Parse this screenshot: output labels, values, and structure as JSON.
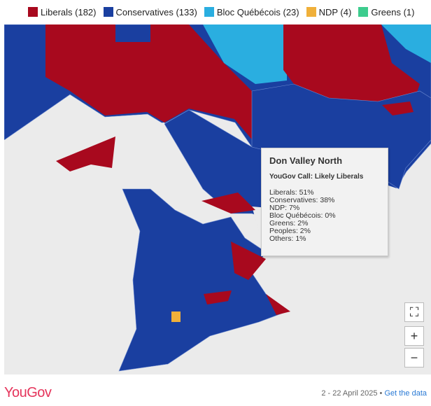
{
  "legend": {
    "items": [
      {
        "label": "Liberals (182)",
        "color": "#a8091e"
      },
      {
        "label": "Conservatives (133)",
        "color": "#1a3fa0"
      },
      {
        "label": "Bloc Québécois (23)",
        "color": "#2aaee0"
      },
      {
        "label": "NDP (4)",
        "color": "#f0b03a"
      },
      {
        "label": "Greens (1)",
        "color": "#3dcc8e"
      }
    ]
  },
  "tooltip": {
    "title": "Don Valley North",
    "call": "YouGov Call: Likely Liberals",
    "lines": [
      "Liberals: 51%",
      "Conservatives: 38%",
      "NDP: 7%",
      "Bloc Québécois: 0%",
      "Greens: 2%",
      "Peoples: 2%",
      "Others: 1%"
    ]
  },
  "controls": {
    "fullscreen": "⛶",
    "zoom_in": "+",
    "zoom_out": "−"
  },
  "footer": {
    "logo": "YouGov",
    "date": "2 - 22 April 2025",
    "separator": "•",
    "link": "Get the data"
  }
}
